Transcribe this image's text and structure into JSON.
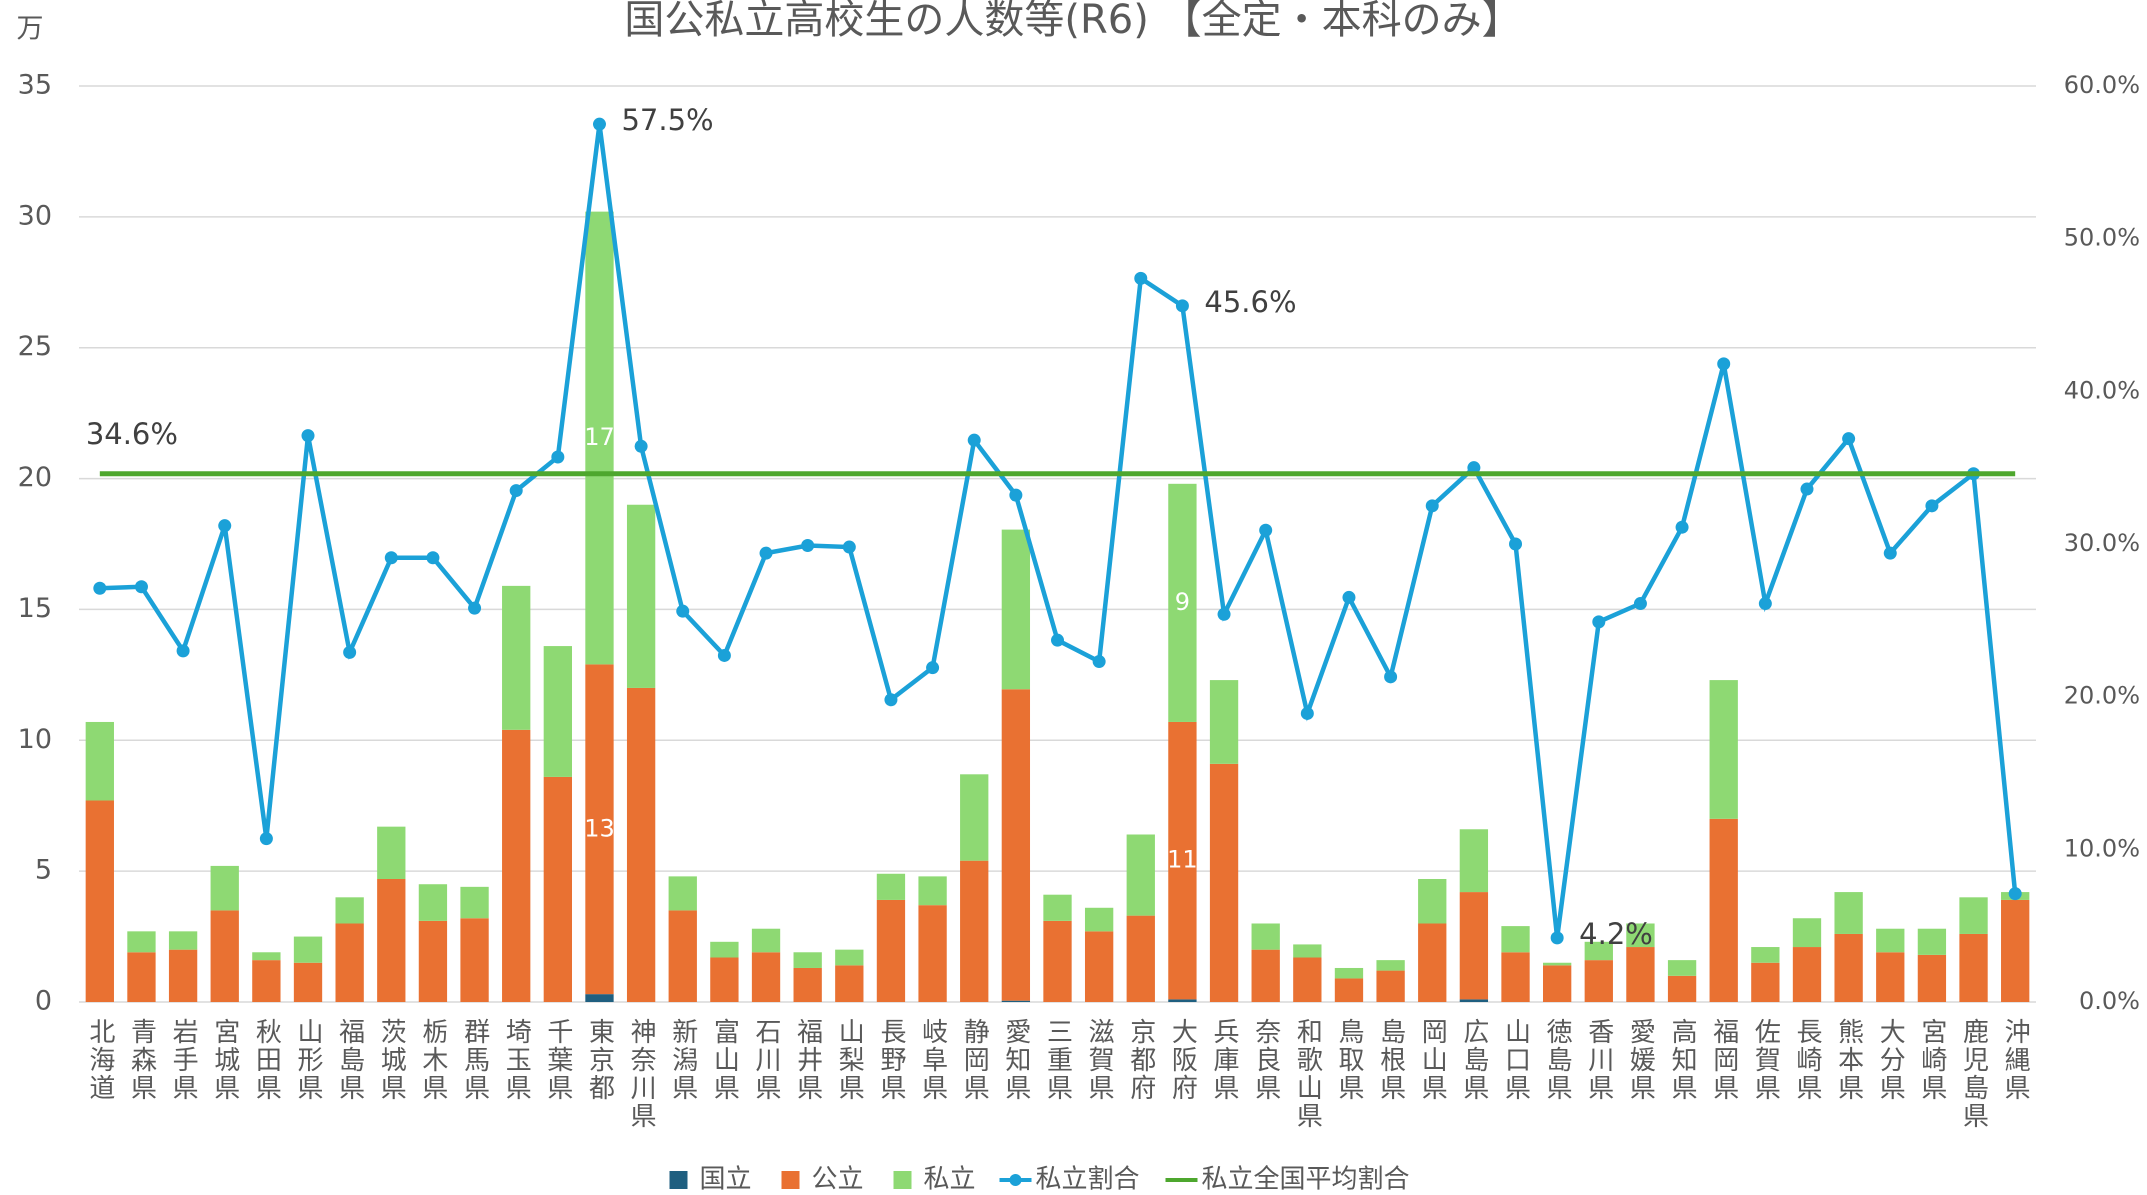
{
  "chart_data": {
    "type": "bar",
    "stacked": true,
    "title": "国公私立高校生の人数等(R6) 【全定・本科のみ】",
    "y_label": "万",
    "categories": [
      "北海道",
      "青森県",
      "岩手県",
      "宮城県",
      "秋田県",
      "山形県",
      "福島県",
      "茨城県",
      "栃木県",
      "群馬県",
      "埼玉県",
      "千葉県",
      "東京都",
      "神奈川県",
      "新潟県",
      "富山県",
      "石川県",
      "福井県",
      "山梨県",
      "長野県",
      "岐阜県",
      "静岡県",
      "愛知県",
      "三重県",
      "滋賀県",
      "京都府",
      "大阪府",
      "兵庫県",
      "奈良県",
      "和歌山県",
      "鳥取県",
      "島根県",
      "岡山県",
      "広島県",
      "山口県",
      "徳島県",
      "香川県",
      "愛媛県",
      "高知県",
      "福岡県",
      "佐賀県",
      "長崎県",
      "熊本県",
      "大分県",
      "宮崎県",
      "鹿児島県",
      "沖縄県"
    ],
    "ylim": [
      0,
      35
    ],
    "yticks": [
      0,
      5,
      10,
      15,
      20,
      25,
      30,
      35
    ],
    "y2lim": [
      0,
      60
    ],
    "y2ticks": [
      {
        "value": 0,
        "label": "0.0%"
      },
      {
        "value": 10,
        "label": "10.0%"
      },
      {
        "value": 20,
        "label": "20.0%"
      },
      {
        "value": 30,
        "label": "30.0%"
      },
      {
        "value": 40,
        "label": "40.0%"
      },
      {
        "value": 50,
        "label": "50.0%"
      },
      {
        "value": 60,
        "label": "60.0%"
      }
    ],
    "grid": true,
    "legend": "bottom",
    "series": [
      {
        "name": "国立",
        "type": "bar",
        "color": "#1f5f80",
        "values": [
          0,
          0,
          0,
          0,
          0,
          0,
          0,
          0,
          0,
          0,
          0,
          0,
          0.3,
          0,
          0,
          0,
          0,
          0,
          0,
          0,
          0,
          0,
          0.05,
          0,
          0,
          0,
          0.1,
          0,
          0,
          0,
          0,
          0,
          0,
          0.1,
          0,
          0,
          0,
          0,
          0,
          0,
          0,
          0,
          0,
          0,
          0,
          0,
          0
        ]
      },
      {
        "name": "公立",
        "type": "bar",
        "color": "#e97132",
        "values": [
          7.7,
          1.9,
          2.0,
          3.5,
          1.6,
          1.5,
          3.0,
          4.7,
          3.1,
          3.2,
          10.4,
          8.6,
          12.6,
          12.0,
          3.5,
          1.7,
          1.9,
          1.3,
          1.4,
          3.9,
          3.7,
          5.4,
          11.9,
          3.1,
          2.7,
          3.3,
          10.6,
          9.1,
          2.0,
          1.7,
          0.9,
          1.2,
          3.0,
          4.1,
          1.9,
          1.4,
          1.6,
          2.1,
          1.0,
          7.0,
          1.5,
          2.1,
          2.6,
          1.9,
          1.8,
          2.6,
          3.9
        ],
        "value_labels": [
          null,
          null,
          null,
          null,
          null,
          null,
          null,
          null,
          null,
          null,
          null,
          null,
          "13",
          null,
          null,
          null,
          null,
          null,
          null,
          null,
          null,
          null,
          null,
          null,
          null,
          null,
          "11",
          null,
          null,
          null,
          null,
          null,
          null,
          null,
          null,
          null,
          null,
          null,
          null,
          null,
          null,
          null,
          null,
          null,
          null,
          null,
          null
        ]
      },
      {
        "name": "私立",
        "type": "bar",
        "color": "#8ed973",
        "values": [
          3.0,
          0.8,
          0.7,
          1.7,
          0.3,
          1.0,
          1.0,
          2.0,
          1.4,
          1.2,
          5.5,
          5.0,
          17.3,
          7.0,
          1.3,
          0.6,
          0.9,
          0.6,
          0.6,
          1.0,
          1.1,
          3.3,
          6.1,
          1.0,
          0.9,
          3.1,
          9.1,
          3.2,
          1.0,
          0.5,
          0.4,
          0.4,
          1.7,
          2.4,
          1.0,
          0.1,
          0.7,
          0.9,
          0.6,
          5.3,
          0.6,
          1.1,
          1.6,
          0.9,
          1.0,
          1.4,
          0.3
        ],
        "value_labels": [
          null,
          null,
          null,
          null,
          null,
          null,
          null,
          null,
          null,
          null,
          null,
          null,
          "17",
          null,
          null,
          null,
          null,
          null,
          null,
          null,
          null,
          null,
          null,
          null,
          null,
          null,
          "9",
          null,
          null,
          null,
          null,
          null,
          null,
          null,
          null,
          null,
          null,
          null,
          null,
          null,
          null,
          null,
          null,
          null,
          null,
          null,
          null
        ]
      },
      {
        "name": "私立割合",
        "type": "line",
        "axis": "y2",
        "markers": true,
        "color": "#1ba1d8",
        "values": [
          27.1,
          27.2,
          23.0,
          31.2,
          10.7,
          37.1,
          22.9,
          29.1,
          29.1,
          25.8,
          33.5,
          35.7,
          57.5,
          36.4,
          25.6,
          22.7,
          29.4,
          29.9,
          29.8,
          19.8,
          21.9,
          36.8,
          33.2,
          23.7,
          22.3,
          47.4,
          45.6,
          25.4,
          30.9,
          18.9,
          26.5,
          21.3,
          32.5,
          35.0,
          30.0,
          4.2,
          24.9,
          26.1,
          31.1,
          41.8,
          26.1,
          33.6,
          36.9,
          29.4,
          32.5,
          34.6,
          7.1
        ],
        "value_labels": [
          null,
          null,
          null,
          null,
          null,
          null,
          null,
          null,
          null,
          null,
          null,
          null,
          "57.5%",
          null,
          null,
          null,
          null,
          null,
          null,
          null,
          null,
          null,
          null,
          null,
          null,
          null,
          "45.6%",
          null,
          null,
          null,
          null,
          null,
          null,
          null,
          null,
          "4.2%",
          null,
          null,
          null,
          null,
          null,
          null,
          null,
          null,
          null,
          null,
          null
        ]
      },
      {
        "name": "私立全国平均割合",
        "type": "line",
        "axis": "y2",
        "color": "#4ea72e",
        "values": [
          34.6,
          34.6,
          34.6,
          34.6,
          34.6,
          34.6,
          34.6,
          34.6,
          34.6,
          34.6,
          34.6,
          34.6,
          34.6,
          34.6,
          34.6,
          34.6,
          34.6,
          34.6,
          34.6,
          34.6,
          34.6,
          34.6,
          34.6,
          34.6,
          34.6,
          34.6,
          34.6,
          34.6,
          34.6,
          34.6,
          34.6,
          34.6,
          34.6,
          34.6,
          34.6,
          34.6,
          34.6,
          34.6,
          34.6,
          34.6,
          34.6,
          34.6,
          34.6,
          34.6,
          34.6,
          34.6,
          34.6
        ],
        "value_labels": [
          "34.6%",
          null,
          null,
          null,
          null,
          null,
          null,
          null,
          null,
          null,
          null,
          null,
          null,
          null,
          null,
          null,
          null,
          null,
          null,
          null,
          null,
          null,
          null,
          null,
          null,
          null,
          null,
          null,
          null,
          null,
          null,
          null,
          null,
          null,
          null,
          null,
          null,
          null,
          null,
          null,
          null,
          null,
          null,
          null,
          null,
          null,
          null
        ]
      }
    ]
  }
}
